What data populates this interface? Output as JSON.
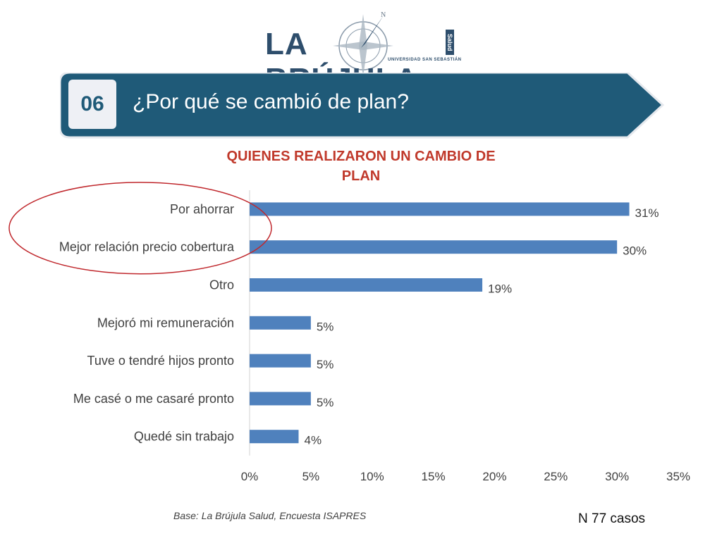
{
  "header": {
    "logo_text": "LA BRÚJULA",
    "logo_salud": "Salud",
    "logo_subtitle": "UNIVERSIDAD SAN SEBASTIÁN",
    "slide_number": "06",
    "title": "¿Por qué se cambió de plan?"
  },
  "colors": {
    "banner": "#1f5a78",
    "bar": "#4f81bd",
    "title_red": "#c0392b",
    "highlight_ellipse": "#c0282d"
  },
  "chart_data": {
    "type": "bar",
    "orientation": "horizontal",
    "title": "QUIENES REALIZARON UN CAMBIO DE PLAN",
    "categories": [
      "Por ahorrar",
      "Mejor relación precio cobertura",
      "Otro",
      "Mejoró mi remuneración",
      "Tuve o tendré hijos pronto",
      "Me casé o me casaré pronto",
      "Quedé sin trabajo"
    ],
    "values": [
      31,
      30,
      19,
      5,
      5,
      5,
      4
    ],
    "value_labels": [
      "31%",
      "30%",
      "19%",
      "5%",
      "5%",
      "5%",
      "4%"
    ],
    "xlim": [
      0,
      35
    ],
    "xticks": [
      "0%",
      "5%",
      "10%",
      "15%",
      "20%",
      "25%",
      "30%",
      "35%"
    ],
    "grid": false,
    "highlighted_categories": [
      "Por ahorrar",
      "Mejor relación precio cobertura"
    ]
  },
  "footer": {
    "source": "Base: La Brújula Salud, Encuesta ISAPRES",
    "cases": "N 77 casos"
  }
}
